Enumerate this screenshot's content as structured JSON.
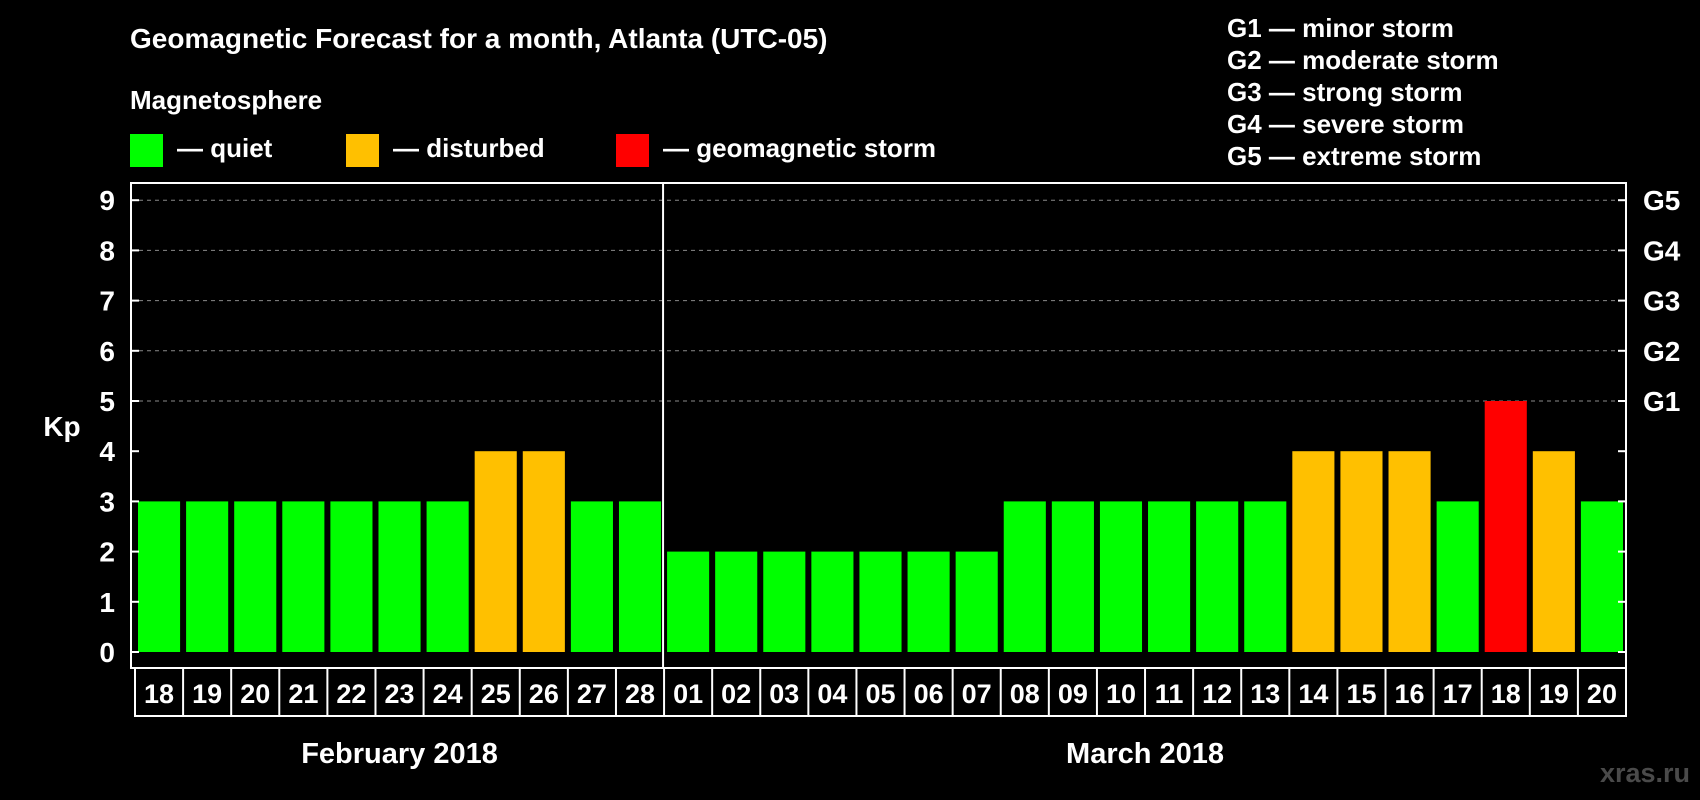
{
  "chart_data": {
    "type": "bar",
    "title": "Geomagnetic Forecast for a month, Atlanta (UTC-05)",
    "ylabel": "Kp",
    "ylim": [
      0,
      9
    ],
    "yticks": [
      "0",
      "1",
      "2",
      "3",
      "4",
      "5",
      "6",
      "7",
      "8",
      "9"
    ],
    "right_axis_labels": [
      {
        "kp": 5,
        "label": "G1"
      },
      {
        "kp": 6,
        "label": "G2"
      },
      {
        "kp": 7,
        "label": "G3"
      },
      {
        "kp": 8,
        "label": "G4"
      },
      {
        "kp": 9,
        "label": "G5"
      }
    ],
    "legend_title": "Magnetosphere",
    "legend": [
      {
        "key": "quiet",
        "label": "— quiet",
        "color": "#00ff00"
      },
      {
        "key": "disturbed",
        "label": "— disturbed",
        "color": "#ffc000"
      },
      {
        "key": "storm",
        "label": "— geomagnetic storm",
        "color": "#ff0000"
      }
    ],
    "storm_scale": [
      "G1 — minor storm",
      "G2 — moderate storm",
      "G3 — strong storm",
      "G4 — severe storm",
      "G5 — extreme storm"
    ],
    "grid": true,
    "categories": [
      "18",
      "19",
      "20",
      "21",
      "22",
      "23",
      "24",
      "25",
      "26",
      "27",
      "28",
      "01",
      "02",
      "03",
      "04",
      "05",
      "06",
      "07",
      "08",
      "09",
      "10",
      "11",
      "12",
      "13",
      "14",
      "15",
      "16",
      "17",
      "18",
      "19",
      "20"
    ],
    "values": [
      3,
      3,
      3,
      3,
      3,
      3,
      3,
      4,
      4,
      3,
      3,
      2,
      2,
      2,
      2,
      2,
      2,
      2,
      3,
      3,
      3,
      3,
      3,
      3,
      4,
      4,
      4,
      3,
      5,
      4,
      3
    ],
    "levels": [
      "quiet",
      "quiet",
      "quiet",
      "quiet",
      "quiet",
      "quiet",
      "quiet",
      "disturbed",
      "disturbed",
      "quiet",
      "quiet",
      "quiet",
      "quiet",
      "quiet",
      "quiet",
      "quiet",
      "quiet",
      "quiet",
      "quiet",
      "quiet",
      "quiet",
      "quiet",
      "quiet",
      "quiet",
      "disturbed",
      "disturbed",
      "disturbed",
      "quiet",
      "storm",
      "disturbed",
      "quiet"
    ],
    "months": [
      {
        "label": "February 2018",
        "start": 0,
        "end": 10
      },
      {
        "label": "March 2018",
        "start": 11,
        "end": 30
      }
    ]
  },
  "brand": "xras.ru"
}
